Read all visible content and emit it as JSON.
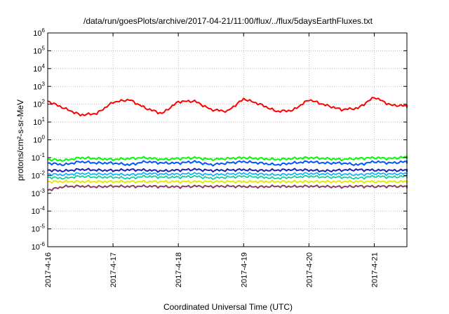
{
  "chart_data": {
    "type": "line",
    "title": "/data/run/goesPlots/archive/2017-04-21/11:00/flux/../flux/5daysEarthFluxes.txt",
    "xlabel": "Coordinated Universal Time (UTC)",
    "ylabel": "protons/cm²-s-sr-MeV",
    "yscale": "log",
    "ylim": [
      1e-06,
      1000000.0
    ],
    "xlim": [
      "2017-04-16 00:00",
      "2017-04-21 12:00"
    ],
    "x_ticks": [
      "2017-4-16",
      "2017-4-17",
      "2017-4-18",
      "2017-4-19",
      "2017-4-20",
      "2017-4-21"
    ],
    "y_ticks": [
      {
        "value": 1e-06,
        "base": "10",
        "exp": "-6"
      },
      {
        "value": 1e-05,
        "base": "10",
        "exp": "-5"
      },
      {
        "value": 0.0001,
        "base": "10",
        "exp": "-4"
      },
      {
        "value": 0.001,
        "base": "10",
        "exp": "-3"
      },
      {
        "value": 0.01,
        "base": "10",
        "exp": "-2"
      },
      {
        "value": 0.1,
        "base": "10",
        "exp": "-1"
      },
      {
        "value": 1,
        "base": "10",
        "exp": "0"
      },
      {
        "value": 10,
        "base": "10",
        "exp": "1"
      },
      {
        "value": 100,
        "base": "10",
        "exp": "2"
      },
      {
        "value": 1000,
        "base": "10",
        "exp": "3"
      },
      {
        "value": 10000,
        "base": "10",
        "exp": "4"
      },
      {
        "value": 100000,
        "base": "10",
        "exp": "5"
      },
      {
        "value": 1000000,
        "base": "10",
        "exp": "6"
      }
    ],
    "grid": true,
    "x": [
      "2017-04-16 00:00",
      "2017-04-16 06:00",
      "2017-04-16 12:00",
      "2017-04-16 18:00",
      "2017-04-17 00:00",
      "2017-04-17 06:00",
      "2017-04-17 12:00",
      "2017-04-17 18:00",
      "2017-04-18 00:00",
      "2017-04-18 06:00",
      "2017-04-18 12:00",
      "2017-04-18 18:00",
      "2017-04-19 00:00",
      "2017-04-19 06:00",
      "2017-04-19 12:00",
      "2017-04-19 18:00",
      "2017-04-20 00:00",
      "2017-04-20 06:00",
      "2017-04-20 12:00",
      "2017-04-20 18:00",
      "2017-04-21 00:00",
      "2017-04-21 06:00",
      "2017-04-21 12:00"
    ],
    "series": [
      {
        "color": "#ff0000",
        "width": 2,
        "values": [
          150,
          60,
          25,
          30,
          130,
          180,
          60,
          30,
          140,
          150,
          50,
          40,
          200,
          100,
          40,
          45,
          180,
          90,
          50,
          60,
          250,
          90,
          80
        ]
      },
      {
        "color": "#00ff00",
        "width": 2,
        "values": [
          0.08,
          0.07,
          0.1,
          0.09,
          0.08,
          0.09,
          0.1,
          0.08,
          0.09,
          0.1,
          0.08,
          0.09,
          0.1,
          0.09,
          0.08,
          0.09,
          0.1,
          0.09,
          0.08,
          0.09,
          0.1,
          0.09,
          0.11
        ]
      },
      {
        "color": "#0055ff",
        "width": 2,
        "values": [
          0.05,
          0.04,
          0.06,
          0.05,
          0.05,
          0.04,
          0.06,
          0.05,
          0.05,
          0.06,
          0.04,
          0.05,
          0.06,
          0.05,
          0.04,
          0.05,
          0.06,
          0.05,
          0.05,
          0.04,
          0.06,
          0.05,
          0.06
        ]
      },
      {
        "color": "#1f1fb0",
        "width": 2,
        "values": [
          0.02,
          0.018,
          0.022,
          0.02,
          0.019,
          0.021,
          0.02,
          0.018,
          0.02,
          0.022,
          0.019,
          0.02,
          0.021,
          0.019,
          0.02,
          0.021,
          0.02,
          0.018,
          0.02,
          0.021,
          0.02,
          0.019,
          0.02
        ]
      },
      {
        "color": "#00b0ff",
        "width": 1.6,
        "values": [
          0.012,
          0.011,
          0.013,
          0.012,
          0.012,
          0.011,
          0.013,
          0.012,
          0.012,
          0.013,
          0.011,
          0.012,
          0.013,
          0.012,
          0.011,
          0.012,
          0.013,
          0.012,
          0.012,
          0.011,
          0.013,
          0.012,
          0.013
        ]
      },
      {
        "color": "#00cc99",
        "width": 1.6,
        "values": [
          0.008,
          0.007,
          0.009,
          0.008,
          0.008,
          0.007,
          0.009,
          0.008,
          0.008,
          0.009,
          0.007,
          0.008,
          0.009,
          0.008,
          0.007,
          0.008,
          0.009,
          0.008,
          0.008,
          0.007,
          0.009,
          0.008,
          0.009
        ]
      },
      {
        "color": "#e8e800",
        "width": 2,
        "values": [
          0.0045,
          0.0045,
          0.0045,
          0.0045,
          0.0045,
          0.0045,
          0.0045,
          0.0045,
          0.0045,
          0.0045,
          0.0045,
          0.0045,
          0.0045,
          0.0045,
          0.0045,
          0.0045,
          0.0045,
          0.0045,
          0.0045,
          0.0045,
          0.0045,
          0.0045,
          0.0045
        ]
      },
      {
        "color": "#8b3a62",
        "width": 2,
        "values": [
          0.0015,
          0.0024,
          0.0025,
          0.0023,
          0.0025,
          0.0024,
          0.0025,
          0.0024,
          0.0023,
          0.0025,
          0.0024,
          0.0025,
          0.0024,
          0.0023,
          0.0025,
          0.0024,
          0.0025,
          0.0024,
          0.0023,
          0.0025,
          0.0024,
          0.0025,
          0.0024
        ]
      }
    ]
  }
}
